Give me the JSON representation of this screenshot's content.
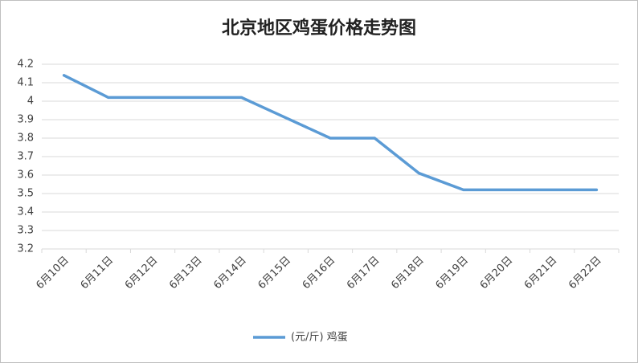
{
  "chart_data": {
    "type": "line",
    "title": "北京地区鸡蛋价格走势图",
    "categories": [
      "6月10日",
      "6月11日",
      "6月12日",
      "6月13日",
      "6月14日",
      "6月15日",
      "6月16日",
      "6月17日",
      "6月18日",
      "6月19日",
      "6月20日",
      "6月21日",
      "6月22日"
    ],
    "series": [
      {
        "name": "(元/斤) 鸡蛋",
        "color": "#5b9bd5",
        "values": [
          4.14,
          4.02,
          4.02,
          4.02,
          4.02,
          3.91,
          3.8,
          3.8,
          3.61,
          3.52,
          3.52,
          3.52,
          3.52
        ]
      }
    ],
    "ylim": [
      3.2,
      4.2
    ],
    "yticks": [
      3.2,
      3.3,
      3.4,
      3.5,
      3.6,
      3.7,
      3.8,
      3.9,
      4,
      4.1,
      4.2
    ],
    "grid": true,
    "legend": "bottom"
  }
}
